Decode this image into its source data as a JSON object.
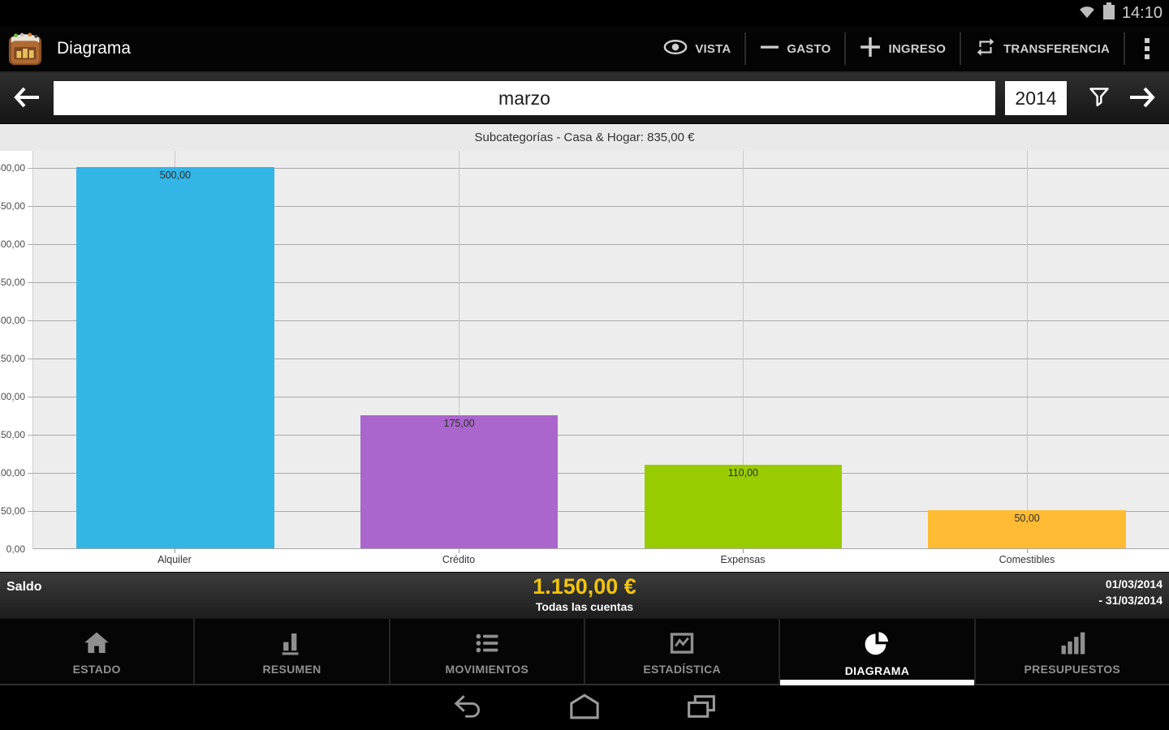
{
  "status_bar": {
    "time": "14:10",
    "icons": [
      "wifi-icon",
      "battery-icon"
    ]
  },
  "action_bar": {
    "title": "Diagrama",
    "app_icon": "wallet-app-icon",
    "actions": [
      {
        "label": "VISTA",
        "icon": "eye-icon"
      },
      {
        "label": "GASTO",
        "icon": "minus-icon"
      },
      {
        "label": "INGRESO",
        "icon": "plus-icon"
      },
      {
        "label": "TRANSFERENCIA",
        "icon": "transfer-icon"
      }
    ],
    "overflow_icon": "overflow-menu-icon"
  },
  "period_nav": {
    "prev_icon": "arrow-left-icon",
    "month": "marzo",
    "year": "2014",
    "filter_icon": "filter-funnel-icon",
    "next_icon": "arrow-right-icon"
  },
  "chart_data": {
    "type": "bar",
    "title": "Subcategorías - Casa & Hogar: 835,00 €",
    "categories": [
      "Alquiler",
      "Crédito",
      "Expensas",
      "Comestibles"
    ],
    "values": [
      500,
      175,
      110,
      50
    ],
    "value_labels": [
      "500,00",
      "175,00",
      "110,00",
      "50,00"
    ],
    "bar_colors": [
      "#33b5e5",
      "#aa66cc",
      "#99cc00",
      "#ffbb33"
    ],
    "ylim": [
      0,
      500
    ],
    "ytick_step": 50,
    "grid": true,
    "legend": "none",
    "plot_bg": "#ededed"
  },
  "summary_bar": {
    "label": "Saldo",
    "amount": "1.150,00 €",
    "amount_color": "#f2c30f",
    "accounts": "Todas las cuentas",
    "date_from": "01/03/2014",
    "date_to": "- 31/03/2014"
  },
  "tab_bar": {
    "tabs": [
      {
        "label": "ESTADO",
        "icon": "home-icon",
        "selected": false
      },
      {
        "label": "RESUMEN",
        "icon": "bar-chart-icon",
        "selected": false
      },
      {
        "label": "MOVIMIENTOS",
        "icon": "list-icon",
        "selected": false
      },
      {
        "label": "ESTADÍSTICA",
        "icon": "line-chart-icon",
        "selected": false
      },
      {
        "label": "DIAGRAMA",
        "icon": "pie-chart-icon",
        "selected": true
      },
      {
        "label": "PRESUPUESTOS",
        "icon": "ascending-bars-icon",
        "selected": false
      }
    ]
  },
  "android_nav": {
    "buttons": [
      "back",
      "home",
      "recents"
    ]
  }
}
